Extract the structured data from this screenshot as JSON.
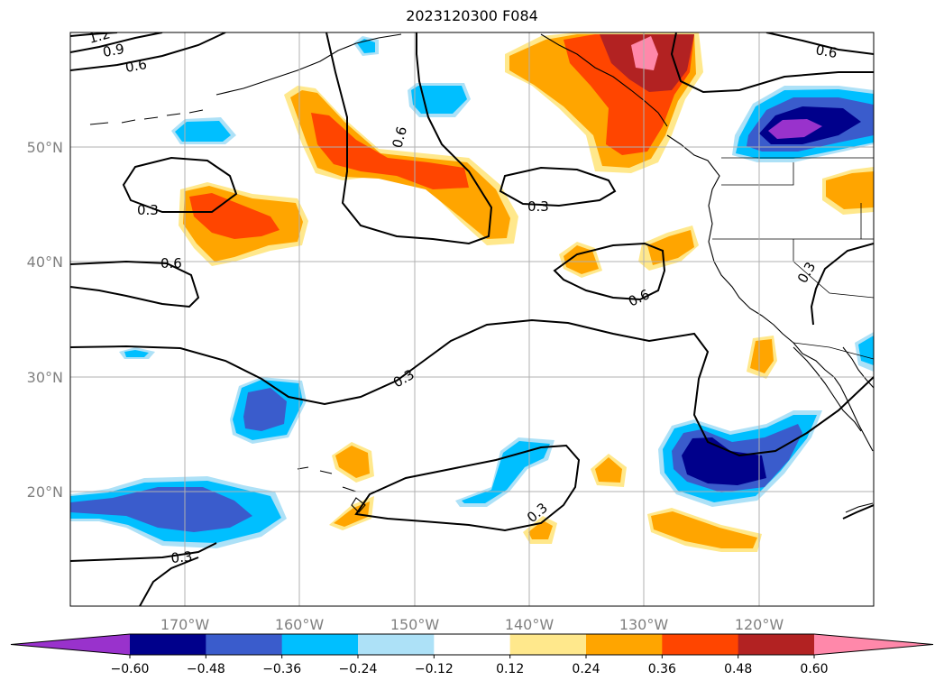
{
  "title": "2023120300 F084",
  "lon_labels": [
    "170°W",
    "160°W",
    "150°W",
    "140°W",
    "130°W",
    "120°W"
  ],
  "lat_labels": [
    "50°N",
    "40°N",
    "30°N",
    "20°N"
  ],
  "contour_labels": [
    "1.2",
    "0.9",
    "0.6",
    "0.6",
    "0.6",
    "0.3",
    "0.6",
    "0.3",
    "0.6",
    "0.3",
    "0.3",
    "0.3",
    "0.3"
  ],
  "colorbar": {
    "ticks": [
      "−0.60",
      "−0.48",
      "−0.36",
      "−0.24",
      "−0.12",
      "0.12",
      "0.24",
      "0.36",
      "0.48",
      "0.60"
    ],
    "colors": [
      "#9932cc",
      "#00008b",
      "#3a5ccc",
      "#00bfff",
      "#ade1f7",
      "#ffffff",
      "#ffe88c",
      "#ffa500",
      "#ff4500",
      "#b22222",
      "#ff88aa"
    ]
  },
  "colors": {
    "neg1": "#ade1f7",
    "neg2": "#00bfff",
    "neg3": "#3a5ccc",
    "neg4": "#00008b",
    "neg5": "#9932cc",
    "pos1": "#ffe88c",
    "pos2": "#ffa500",
    "pos3": "#ff4500",
    "pos4": "#b22222",
    "pos5": "#ff88aa"
  }
}
